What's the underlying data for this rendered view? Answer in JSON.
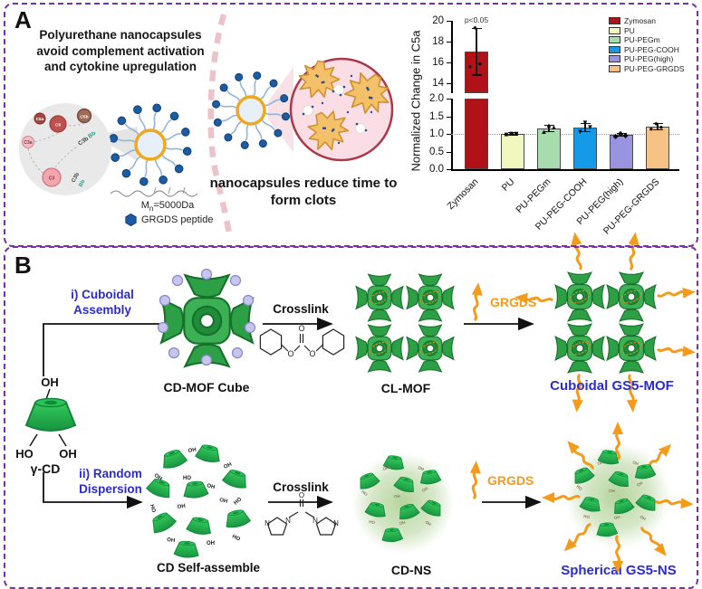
{
  "panelA": {
    "label": "A",
    "title_lines": [
      "Polyurethane nanocapsules",
      "avoid complement activation",
      "and cytokine upregulation"
    ],
    "complement": {
      "c5a": "C5a",
      "c5": "C5",
      "c5b": "C5b",
      "c3a": "C3a",
      "c3": "C3",
      "c3b_1": "C3b",
      "bb_1": "Bb",
      "c3b_2": "C3b",
      "bb_2": "Bb"
    },
    "polymer_mw": {
      "m": "M",
      "sub": "n",
      "rest": "=5000Da"
    },
    "peptide_legend": "GRGDS peptide",
    "clots_lines": [
      "nanocapsules reduce time to",
      "form clots"
    ]
  },
  "chart_data": {
    "type": "bar",
    "title": "",
    "ylabel": "Normalized Change in C5a",
    "xlabel": "",
    "categories": [
      "Zymosan",
      "PU",
      "PU-PEGm",
      "PU-PEG-COOH",
      "PU-PEG(high)",
      "PU-PEG-GRGDS"
    ],
    "values": [
      17.0,
      1.0,
      1.15,
      1.18,
      0.97,
      1.2
    ],
    "errors": [
      2.3,
      0.05,
      0.1,
      0.13,
      0.05,
      0.1
    ],
    "points": [
      [
        15.5,
        15.8,
        19.3
      ],
      [
        0.97,
        1.0,
        1.01
      ],
      [
        1.05,
        1.17,
        1.22
      ],
      [
        1.05,
        1.17,
        1.32
      ],
      [
        0.93,
        0.96,
        1.0
      ],
      [
        1.12,
        1.18,
        1.27
      ]
    ],
    "marker_glyphs": [
      "●",
      "■",
      "▲",
      "▼",
      "◆",
      "●"
    ],
    "colors": [
      "#b01217",
      "#f2f7c0",
      "#a6dcae",
      "#149ae6",
      "#9a94e0",
      "#f6c286"
    ],
    "legend": [
      "Zymosan",
      "PU",
      "PU-PEGm",
      "PU-PEG-COOH",
      "PU-PEG(high)",
      "PU-PEG-GRGDS"
    ],
    "legend_position": "top-right",
    "grid": false,
    "axis_break": true,
    "upper_range": [
      13,
      20
    ],
    "upper_ticks": [
      "20",
      "18",
      "16",
      "14"
    ],
    "lower_range": [
      0,
      2
    ],
    "lower_ticks": [
      "2.0",
      "1.5",
      "1.0",
      "0.5",
      "0.0"
    ],
    "reference_line": 1.0,
    "significance": "p<0.05"
  },
  "panelB": {
    "label": "B",
    "gamma_cd": {
      "oh_top": "OH",
      "ho_left": "HO",
      "oh_right": "OH",
      "name": "γ-CD"
    },
    "route_i_lines": [
      "i) Cuboidal",
      "Assembly"
    ],
    "route_ii_lines": [
      "ii) Random",
      "Dispersion"
    ],
    "cd_mof_cube_label": "CD-MOF Cube",
    "crosslink1_label": "Crosslink",
    "cl_mof_label": "CL-MOF",
    "grgds1_label": "GRGDS",
    "cuboidal_gs5_label": "Cuboidal GS5-MOF",
    "cd_self_assemble_label": "CD Self-assemble",
    "crosslink2_label": "Crosslink",
    "cd_ns_label": "CD-NS",
    "grgds2_label": "GRGDS",
    "spherical_gs5_label": "Spherical GS5-NS",
    "oh": "OH",
    "ho": "HO",
    "atom_o": "O",
    "atom_n": "N"
  },
  "colors": {
    "panel_border": "#7b2fa5",
    "blue_label": "#2b2bd0",
    "orange": "#f59b1c",
    "green": "#2db54e",
    "peptide_blue": "#1c5ca5"
  }
}
